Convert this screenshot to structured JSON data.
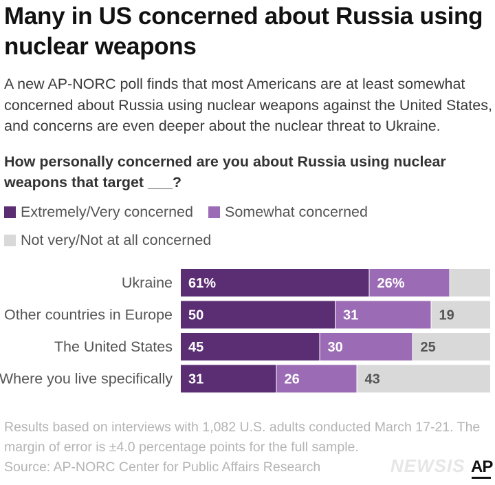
{
  "title": "Many in US concerned about Russia using nuclear weapons",
  "subtitle": "A new AP-NORC poll finds that most Americans are at least somewhat concerned about Russia using nuclear weapons against the United States, and concerns are even deeper about the nuclear threat to Ukraine.",
  "question": "How personally concerned are you about Russia using nuclear weapons that target ___?",
  "legend": [
    {
      "label": "Extremely/Very concerned",
      "color": "#5b2d73"
    },
    {
      "label": "Somewhat concerned",
      "color": "#9b6bb5"
    },
    {
      "label": "Not very/Not at all concerned",
      "color": "#d9d9d9"
    }
  ],
  "chart_data": {
    "type": "bar",
    "orientation": "horizontal",
    "stacked": true,
    "categories": [
      "Ukraine",
      "Other countries in Europe",
      "The United States",
      "Where you live specifically"
    ],
    "series": [
      {
        "name": "Extremely/Very concerned",
        "values": [
          61,
          50,
          45,
          31
        ],
        "labels": [
          "61%",
          "50",
          "45",
          "31"
        ],
        "color": "#5b2d73"
      },
      {
        "name": "Somewhat concerned",
        "values": [
          26,
          31,
          30,
          26
        ],
        "labels": [
          "26%",
          "31",
          "30",
          "26"
        ],
        "color": "#9b6bb5"
      },
      {
        "name": "Not very/Not at all concerned",
        "values": [
          13,
          19,
          25,
          43
        ],
        "labels": [
          "",
          "19",
          "25",
          "43"
        ],
        "color": "#d9d9d9"
      }
    ],
    "xlim": [
      0,
      100
    ],
    "title": "How personally concerned are you about Russia using nuclear weapons that target ___?"
  },
  "notes": "Results based on interviews with 1,082 U.S. adults conducted March 17-21. The margin of error is ±4.0 percentage points for the full sample.",
  "source": "Source: AP-NORC Center for Public Affairs Research",
  "watermark": "NEWSIS",
  "logo": "AP"
}
